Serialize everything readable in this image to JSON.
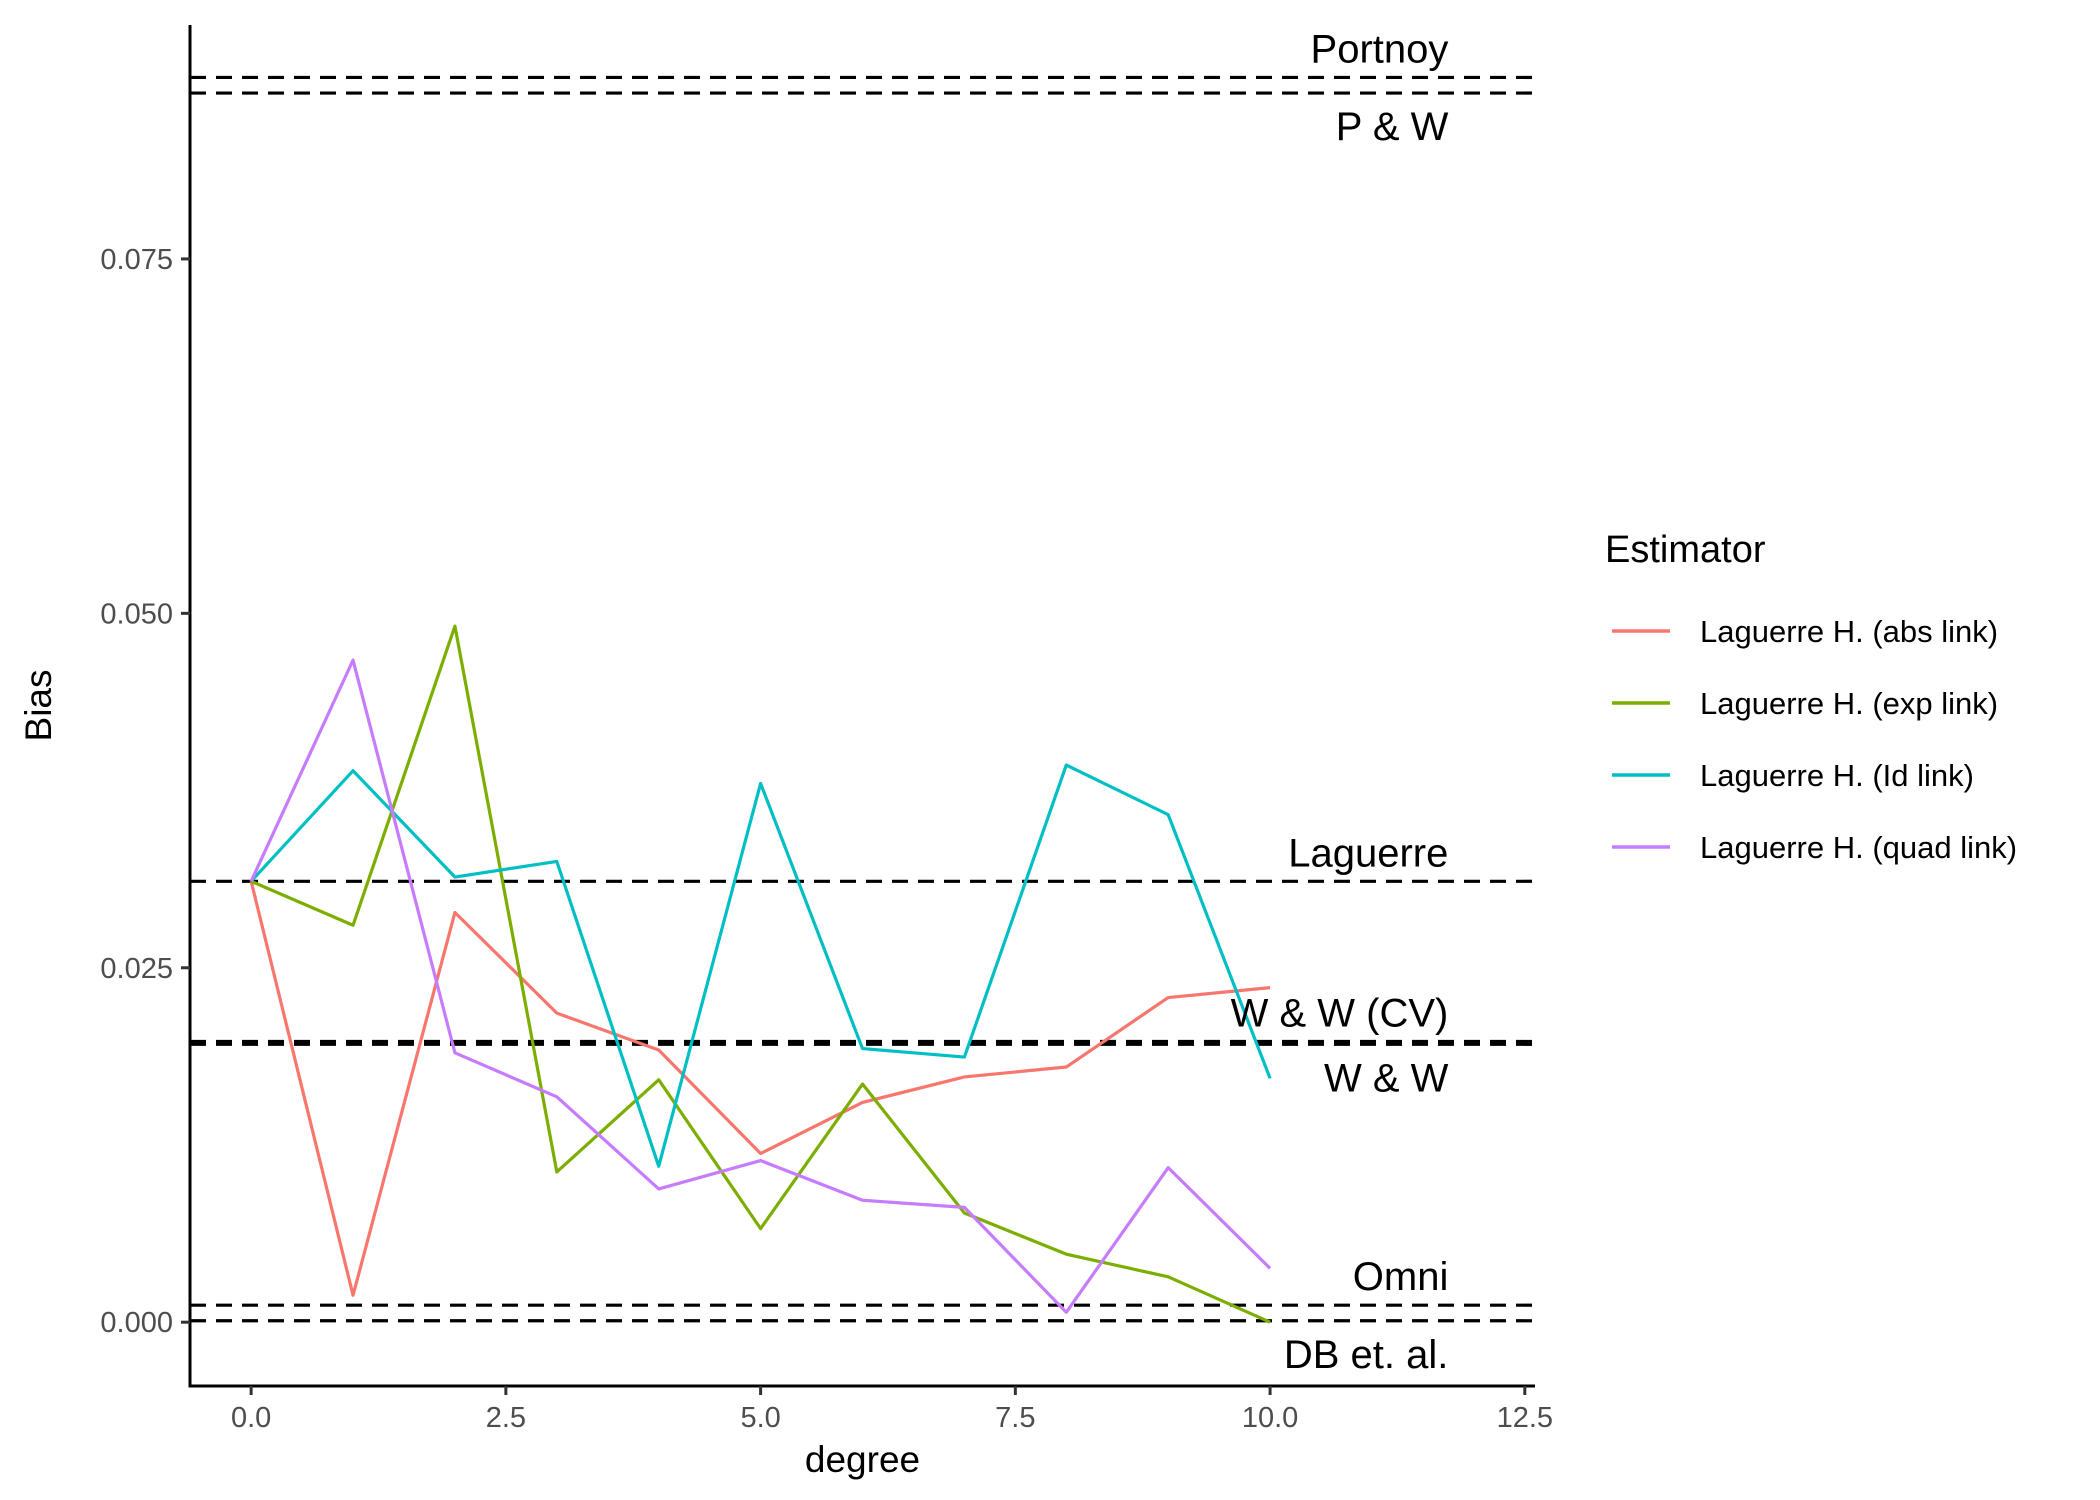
{
  "chart_data": {
    "type": "line",
    "xlabel": "degree",
    "ylabel": "Bias",
    "xlim": [
      -0.6,
      12.6
    ],
    "ylim": [
      -0.0045,
      0.0915
    ],
    "x_ticks": [
      {
        "value": 0.0,
        "label": "0.0"
      },
      {
        "value": 2.5,
        "label": "2.5"
      },
      {
        "value": 5.0,
        "label": "5.0"
      },
      {
        "value": 7.5,
        "label": "7.5"
      },
      {
        "value": 10.0,
        "label": "10.0"
      },
      {
        "value": 12.5,
        "label": "12.5"
      }
    ],
    "y_ticks": [
      {
        "value": 0.0,
        "label": "0.000"
      },
      {
        "value": 0.025,
        "label": "0.025"
      },
      {
        "value": 0.05,
        "label": "0.050"
      },
      {
        "value": 0.075,
        "label": "0.075"
      }
    ],
    "grid": false,
    "x": [
      0,
      1,
      2,
      3,
      4,
      5,
      6,
      7,
      8,
      9,
      10
    ],
    "series": [
      {
        "name": "Laguerre H. (abs link)",
        "color": "#F8766D",
        "values": [
          0.0311,
          0.0019,
          0.0289,
          0.0218,
          0.0192,
          0.0119,
          0.0155,
          0.0173,
          0.018,
          0.0229,
          0.0236
        ]
      },
      {
        "name": "Laguerre H. (exp link)",
        "color": "#7CAE00",
        "values": [
          0.0311,
          0.028,
          0.0491,
          0.0106,
          0.0171,
          0.0066,
          0.0168,
          0.0077,
          0.0048,
          0.0032,
          0.0
        ]
      },
      {
        "name": "Laguerre H. (Id link)",
        "color": "#00BFC4",
        "values": [
          0.0311,
          0.0389,
          0.0314,
          0.0325,
          0.011,
          0.038,
          0.0193,
          0.0187,
          0.0393,
          0.0358,
          0.0172
        ]
      },
      {
        "name": "Laguerre H. (quad link)",
        "color": "#C77CFF",
        "values": [
          0.0311,
          0.0467,
          0.019,
          0.0159,
          0.0094,
          0.0114,
          0.0086,
          0.0081,
          0.0007,
          0.0109,
          0.0038
        ]
      }
    ],
    "reference_lines": [
      {
        "label": "Portnoy",
        "y": 0.0878,
        "label_side": "above"
      },
      {
        "label": "P & W",
        "y": 0.0867,
        "label_side": "below"
      },
      {
        "label": "Laguerre",
        "y": 0.0311,
        "label_side": "above"
      },
      {
        "label": "W & W (CV)",
        "y": 0.0198,
        "label_side": "above"
      },
      {
        "label": "W & W",
        "y": 0.0196,
        "label_side": "below"
      },
      {
        "label": "Omni",
        "y": 0.0012,
        "label_side": "above"
      },
      {
        "label": "DB et. al.",
        "y": 0.0001,
        "label_side": "below"
      }
    ],
    "legend": {
      "title": "Estimator",
      "placement": "right"
    }
  }
}
